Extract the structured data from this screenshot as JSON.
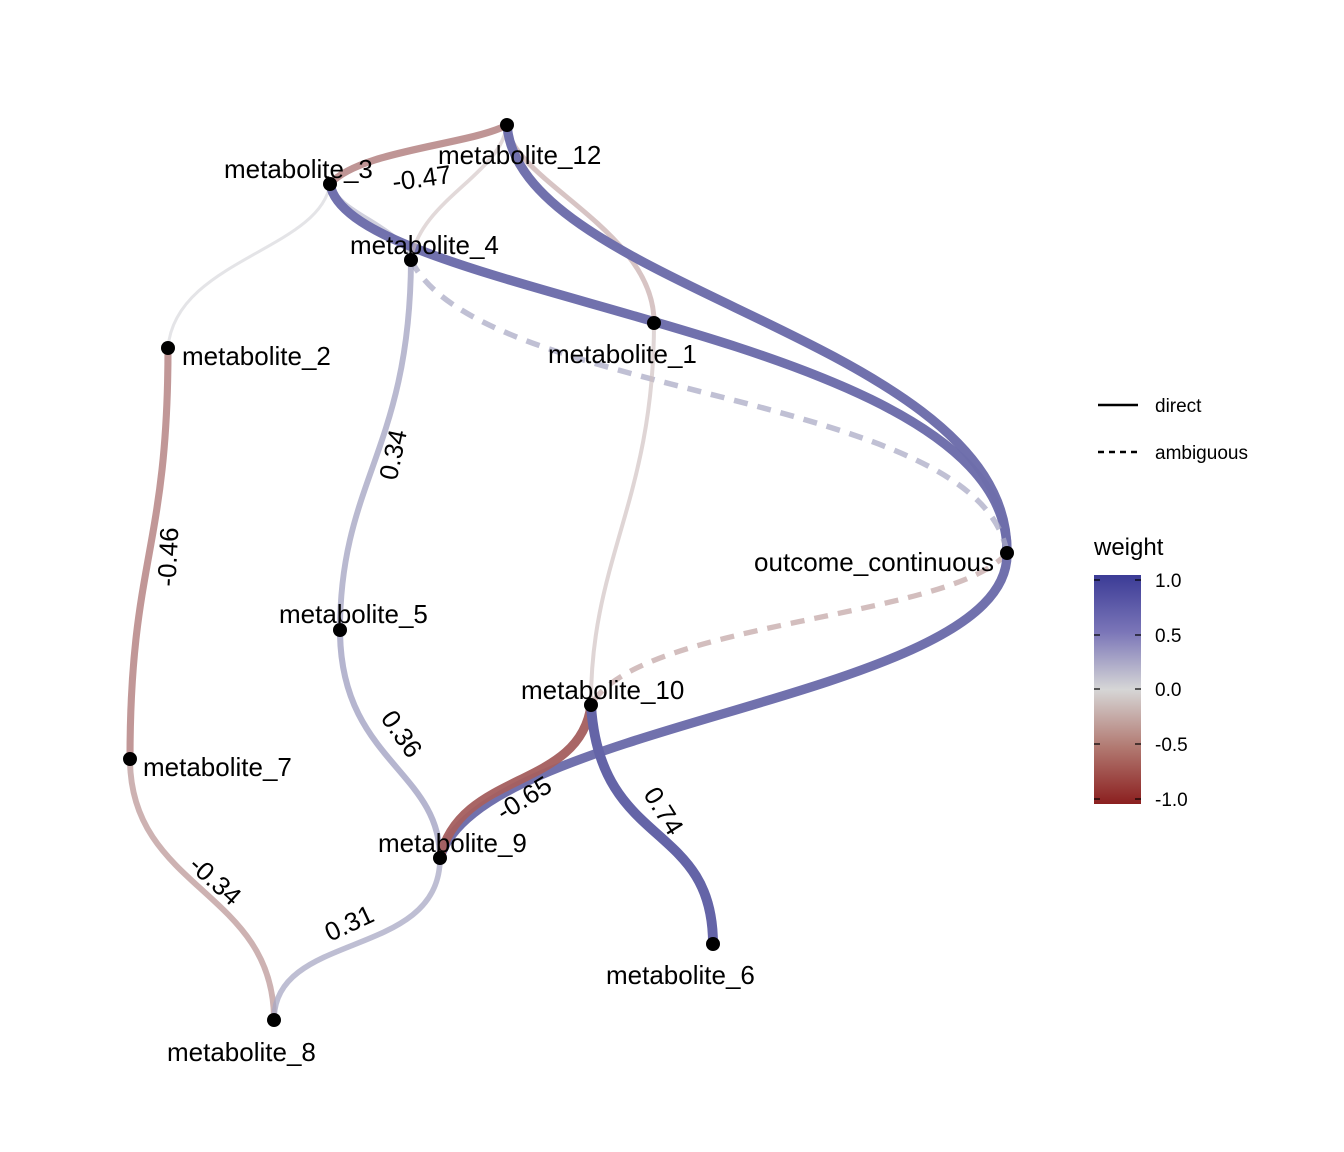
{
  "nodes": [
    {
      "id": "metabolite_12",
      "label": "metabolite_12"
    },
    {
      "id": "metabolite_3",
      "label": "metabolite_3"
    },
    {
      "id": "metabolite_4",
      "label": "metabolite_4"
    },
    {
      "id": "metabolite_1",
      "label": "metabolite_1"
    },
    {
      "id": "metabolite_2",
      "label": "metabolite_2"
    },
    {
      "id": "outcome_continuous",
      "label": "outcome_continuous"
    },
    {
      "id": "metabolite_5",
      "label": "metabolite_5"
    },
    {
      "id": "metabolite_10",
      "label": "metabolite_10"
    },
    {
      "id": "metabolite_7",
      "label": "metabolite_7"
    },
    {
      "id": "metabolite_9",
      "label": "metabolite_9"
    },
    {
      "id": "metabolite_6",
      "label": "metabolite_6"
    },
    {
      "id": "metabolite_8",
      "label": "metabolite_8"
    }
  ],
  "edges": [
    {
      "from": "metabolite_3",
      "to": "metabolite_12",
      "weight": -0.47,
      "label": "-0.47",
      "type": "direct"
    },
    {
      "from": "metabolite_3",
      "to": "metabolite_2",
      "weight": 0.05,
      "label": "",
      "type": "direct"
    },
    {
      "from": "metabolite_3",
      "to": "metabolite_4",
      "weight": 0.2,
      "label": "",
      "type": "direct"
    },
    {
      "from": "metabolite_3",
      "to": "outcome_continuous",
      "weight": 0.68,
      "label": "",
      "type": "direct"
    },
    {
      "from": "metabolite_12",
      "to": "metabolite_4",
      "weight": -0.12,
      "label": "",
      "type": "direct"
    },
    {
      "from": "metabolite_12",
      "to": "metabolite_1",
      "weight": -0.25,
      "label": "",
      "type": "direct"
    },
    {
      "from": "metabolite_12",
      "to": "outcome_continuous",
      "weight": 0.68,
      "label": "",
      "type": "direct"
    },
    {
      "from": "metabolite_4",
      "to": "outcome_continuous",
      "weight": 0.3,
      "label": "",
      "type": "ambiguous"
    },
    {
      "from": "metabolite_4",
      "to": "metabolite_5",
      "weight": 0.34,
      "label": "0.34",
      "type": "direct"
    },
    {
      "from": "metabolite_1",
      "to": "metabolite_10",
      "weight": -0.15,
      "label": "",
      "type": "direct"
    },
    {
      "from": "metabolite_2",
      "to": "metabolite_7",
      "weight": -0.46,
      "label": "-0.46",
      "type": "direct"
    },
    {
      "from": "outcome_continuous",
      "to": "metabolite_10",
      "weight": -0.28,
      "label": "",
      "type": "ambiguous"
    },
    {
      "from": "outcome_continuous",
      "to": "metabolite_9",
      "weight": 0.68,
      "label": "",
      "type": "direct"
    },
    {
      "from": "metabolite_5",
      "to": "metabolite_9",
      "weight": 0.36,
      "label": "0.36",
      "type": "direct"
    },
    {
      "from": "metabolite_10",
      "to": "metabolite_9",
      "weight": -0.65,
      "label": "-0.65",
      "type": "direct"
    },
    {
      "from": "metabolite_10",
      "to": "metabolite_6",
      "weight": 0.74,
      "label": "0.74",
      "type": "direct"
    },
    {
      "from": "metabolite_7",
      "to": "metabolite_8",
      "weight": -0.34,
      "label": "-0.34",
      "type": "direct"
    },
    {
      "from": "metabolite_9",
      "to": "metabolite_8",
      "weight": 0.31,
      "label": "0.31",
      "type": "direct"
    }
  ],
  "legend": {
    "linetype": [
      {
        "label": "direct",
        "style": "solid"
      },
      {
        "label": "ambiguous",
        "style": "dashed"
      }
    ],
    "weight": {
      "title": "weight",
      "ticks": [
        "1.0",
        "0.5",
        "0.0",
        "-0.5",
        "-1.0"
      ],
      "colors": {
        "high": "#3b3b96",
        "mid": "#d9d9d9",
        "low": "#8b1f1f"
      }
    }
  }
}
